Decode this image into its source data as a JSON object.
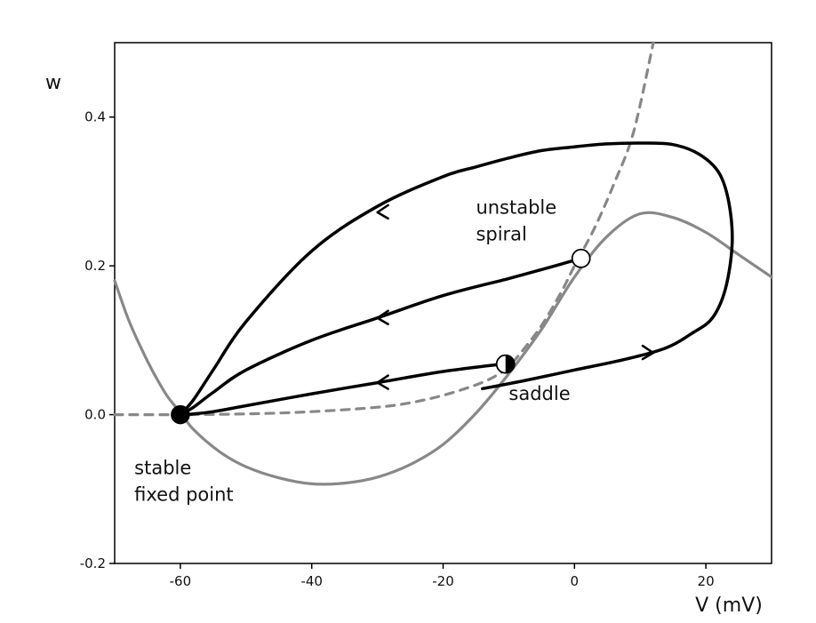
{
  "chart_data": {
    "type": "line",
    "title": "",
    "xlabel": "V (mV)",
    "ylabel": "w",
    "xlim": [
      -70,
      30
    ],
    "ylim": [
      -0.2,
      0.5
    ],
    "xticks": [
      -60,
      -40,
      -20,
      0,
      20
    ],
    "yticks": [
      -0.2,
      0.0,
      0.2,
      0.4
    ],
    "xtick_labels": [
      "-60",
      "-40",
      "-20",
      "0",
      "20"
    ],
    "ytick_labels": [
      "-0.2",
      "0.0",
      "0.2",
      "0.4"
    ],
    "grid": false,
    "style": "xkcd",
    "colors": {
      "trajectory": "#000000",
      "nullcline": "#888888",
      "axes": "#000000"
    },
    "series": [
      {
        "role": "nullcline-solid",
        "style": "solid",
        "x": [
          -70,
          -68,
          -66,
          -64,
          -62,
          -60,
          -58,
          -54,
          -50,
          -45,
          -40,
          -35,
          -30,
          -25,
          -20,
          -15,
          -10,
          -5,
          0,
          5,
          10,
          15,
          20,
          25,
          30
        ],
        "y": [
          0.18,
          0.13,
          0.09,
          0.055,
          0.025,
          0.003,
          -0.02,
          -0.05,
          -0.07,
          -0.085,
          -0.093,
          -0.092,
          -0.084,
          -0.067,
          -0.04,
          0.002,
          0.055,
          0.115,
          0.185,
          0.24,
          0.27,
          0.265,
          0.245,
          0.215,
          0.185
        ]
      },
      {
        "role": "nullcline-dashed",
        "style": "dashed",
        "x": [
          -70,
          -60,
          -50,
          -40,
          -30,
          -25,
          -20,
          -15,
          -12,
          -10,
          -8,
          -5,
          -2,
          0,
          3,
          6,
          9,
          12
        ],
        "y": [
          0.0,
          0.0,
          0.001,
          0.004,
          0.01,
          0.016,
          0.026,
          0.04,
          0.052,
          0.065,
          0.085,
          0.12,
          0.165,
          0.2,
          0.25,
          0.31,
          0.38,
          0.5
        ]
      },
      {
        "role": "trajectory-outer",
        "style": "solid",
        "x": [
          -14,
          -8,
          0,
          8,
          14,
          18,
          21,
          23,
          24,
          23.5,
          22,
          19,
          15,
          10,
          5,
          0,
          -5,
          -10,
          -15,
          -20,
          -30,
          -40,
          -50,
          -55,
          -58,
          -60
        ],
        "y": [
          0.035,
          0.045,
          0.06,
          0.075,
          0.09,
          0.11,
          0.13,
          0.17,
          0.23,
          0.285,
          0.325,
          0.35,
          0.363,
          0.365,
          0.364,
          0.36,
          0.355,
          0.345,
          0.333,
          0.32,
          0.28,
          0.22,
          0.125,
          0.06,
          0.02,
          0.0
        ]
      },
      {
        "role": "trajectory-middle",
        "style": "solid",
        "x": [
          1,
          -5,
          -10,
          -20,
          -30,
          -40,
          -50,
          -55,
          -58,
          -60
        ],
        "y": [
          0.21,
          0.195,
          0.183,
          0.16,
          0.13,
          0.1,
          0.06,
          0.03,
          0.01,
          0.0
        ]
      },
      {
        "role": "trajectory-lower",
        "style": "solid",
        "x": [
          -11,
          -20,
          -30,
          -40,
          -50,
          -55,
          -58,
          -60
        ],
        "y": [
          0.068,
          0.058,
          0.043,
          0.028,
          0.012,
          0.004,
          0.001,
          0.0
        ]
      }
    ],
    "arrows": [
      {
        "x": -30,
        "y": 0.272,
        "direction": "left"
      },
      {
        "x": -30,
        "y": 0.13,
        "direction": "left"
      },
      {
        "x": -30,
        "y": 0.043,
        "direction": "left"
      },
      {
        "x": 12,
        "y": 0.083,
        "direction": "right"
      }
    ],
    "fixed_points": [
      {
        "x": -60,
        "y": 0.0,
        "fill": "filled"
      },
      {
        "x": 1,
        "y": 0.21,
        "fill": "open"
      },
      {
        "x": -10.5,
        "y": 0.068,
        "fill": "half"
      }
    ],
    "annotations": [
      {
        "lines": [
          "unstable",
          "spiral"
        ],
        "x": -15,
        "y": 0.27
      },
      {
        "lines": [
          "saddle"
        ],
        "x": -10,
        "y": 0.02
      },
      {
        "lines": [
          "stable",
          "fixed point"
        ],
        "x": -67,
        "y": -0.08
      }
    ]
  }
}
